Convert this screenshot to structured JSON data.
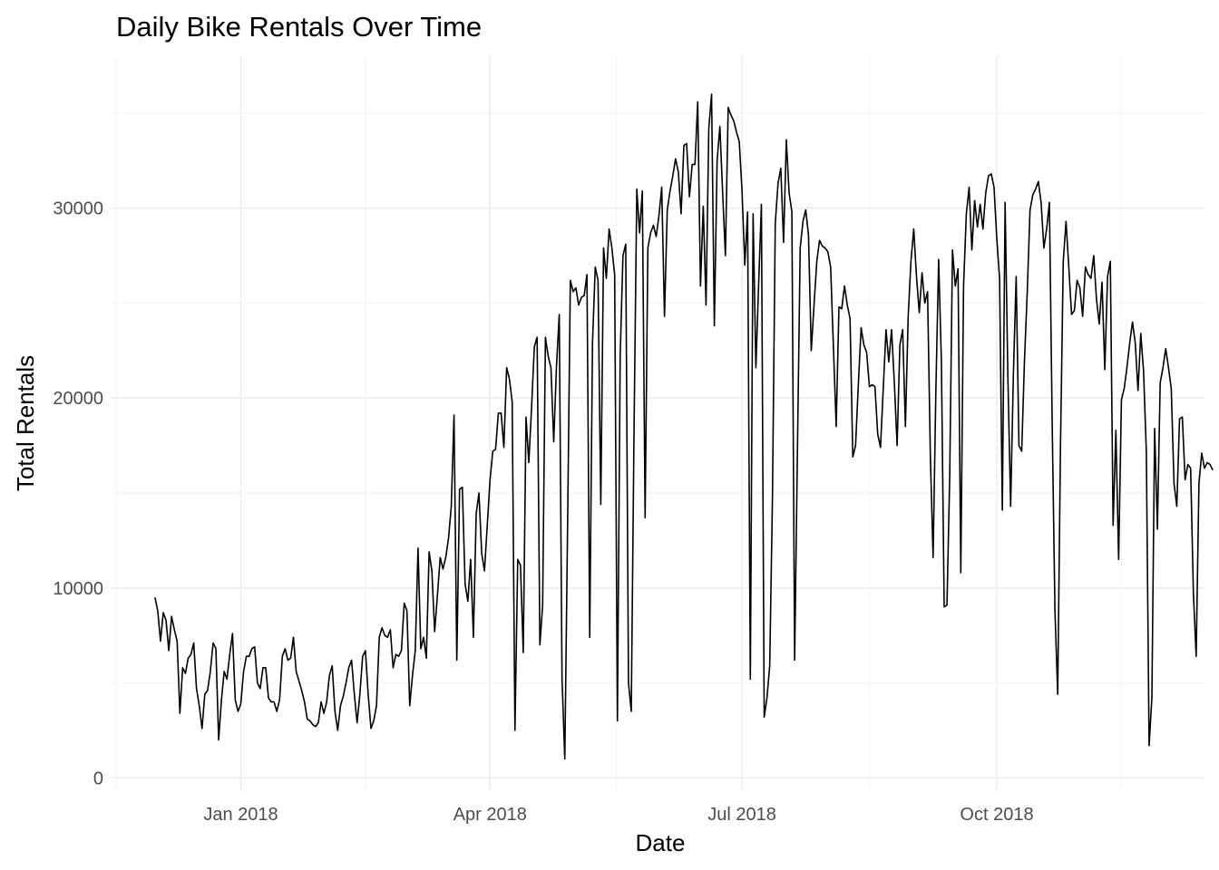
{
  "chart_data": {
    "type": "line",
    "title": "Daily Bike Rentals Over Time",
    "xlabel": "Date",
    "ylabel": "Total Rentals",
    "x_ticks": [
      {
        "date": "2018-01-01",
        "label": "Jan 2018"
      },
      {
        "date": "2018-04-01",
        "label": "Apr 2018"
      },
      {
        "date": "2018-07-01",
        "label": "Jul 2018"
      },
      {
        "date": "2018-10-01",
        "label": "Oct 2018"
      }
    ],
    "y_ticks": [
      0,
      10000,
      20000,
      30000
    ],
    "xlim": [
      "2017-11-15",
      "2018-12-15"
    ],
    "ylim": [
      -700,
      38000
    ],
    "grid": true,
    "legend": "none",
    "series": [
      {
        "start_date": "2017-12-01",
        "values": [
          9500,
          8800,
          7200,
          8700,
          8300,
          6700,
          8500,
          7800,
          7200,
          3400,
          5800,
          5500,
          6300,
          6500,
          7100,
          4700,
          3800,
          2600,
          4400,
          4600,
          5600,
          7100,
          6800,
          2000,
          4100,
          5600,
          5200,
          6500,
          7600,
          4100,
          3500,
          3900,
          5600,
          6400,
          6400,
          6800,
          6900,
          5000,
          4700,
          5800,
          5800,
          4200,
          4000,
          4000,
          3500,
          4100,
          6400,
          6800,
          6200,
          6300,
          7400,
          5600,
          5100,
          4600,
          4000,
          3100,
          3000,
          2800,
          2700,
          2900,
          4000,
          3400,
          4000,
          5400,
          5900,
          3500,
          2500,
          3800,
          4300,
          5000,
          5800,
          6200,
          4400,
          2900,
          4400,
          6400,
          6700,
          4400,
          2600,
          3000,
          3800,
          7400,
          7900,
          7500,
          7400,
          7800,
          5800,
          6500,
          6400,
          6700,
          9200,
          8800,
          3800,
          5400,
          6700,
          12100,
          6800,
          7400,
          6300,
          11900,
          10900,
          7700,
          9600,
          11600,
          11000,
          11600,
          12600,
          14300,
          19100,
          6200,
          15200,
          15300,
          10200,
          9300,
          11500,
          7400,
          13900,
          15000,
          11800,
          10900,
          13300,
          15700,
          17200,
          17300,
          19200,
          19200,
          17400,
          21600,
          21000,
          19800,
          2500,
          11500,
          11200,
          6600,
          19000,
          16600,
          19500,
          22700,
          23200,
          7000,
          9100,
          23200,
          22200,
          21600,
          17700,
          21700,
          24400,
          5200,
          1000,
          13200,
          26200,
          25600,
          25800,
          24900,
          25300,
          25400,
          26500,
          7400,
          22900,
          26900,
          26200,
          14400,
          27900,
          26300,
          28900,
          27900,
          26500,
          3000,
          22200,
          27500,
          28100,
          5000,
          3500,
          18300,
          31000,
          28700,
          30900,
          13700,
          27900,
          28700,
          29100,
          28500,
          29600,
          31100,
          24300,
          29900,
          30900,
          31700,
          32600,
          31900,
          29700,
          33300,
          33400,
          30600,
          32300,
          32300,
          35600,
          25900,
          30100,
          24900,
          34200,
          36000,
          23800,
          32500,
          34300,
          30800,
          27500,
          35300,
          34900,
          34600,
          34000,
          33500,
          30900,
          27000,
          29800,
          5200,
          29700,
          21600,
          26000,
          30200,
          3200,
          4200,
          5900,
          14900,
          29200,
          31300,
          32100,
          28200,
          33600,
          30800,
          29800,
          6200,
          17100,
          27900,
          29300,
          29900,
          28600,
          22500,
          24900,
          27200,
          28300,
          28000,
          27900,
          27700,
          26900,
          22700,
          18500,
          24800,
          24700,
          25900,
          24900,
          24200,
          16900,
          17500,
          20700,
          23700,
          22800,
          22400,
          20600,
          20700,
          20600,
          18100,
          17400,
          20500,
          23600,
          21900,
          23600,
          20800,
          17500,
          22800,
          23600,
          18500,
          24300,
          27200,
          28900,
          26400,
          24500,
          26600,
          25000,
          25600,
          17000,
          11600,
          20400,
          27300,
          21900,
          9000,
          9100,
          15900,
          27800,
          25900,
          26800,
          10800,
          25900,
          29700,
          31100,
          27800,
          30400,
          29000,
          30200,
          28900,
          30800,
          31700,
          31800,
          31100,
          28400,
          26300,
          14100,
          30300,
          21100,
          14300,
          21300,
          26400,
          17500,
          17200,
          22000,
          25600,
          29900,
          30700,
          31000,
          31400,
          30300,
          27900,
          28900,
          30300,
          18700,
          8800,
          4400,
          17500,
          27200,
          29300,
          26900,
          24400,
          24600,
          26200,
          25800,
          24300,
          26900,
          26500,
          26300,
          27500,
          25200,
          23900,
          26100,
          21500,
          26400,
          27200,
          13300,
          18300,
          11500,
          19900,
          20500,
          21600,
          22900,
          24000,
          22900,
          20400,
          23400,
          21400,
          17200,
          1700,
          4200,
          18400,
          13100,
          20800,
          21600,
          22600,
          21600,
          20500,
          15500,
          14300,
          18900,
          19000,
          15700,
          16500,
          16300,
          9700,
          6400,
          15500,
          17100,
          16300,
          16600,
          16500,
          16200
        ]
      }
    ]
  }
}
